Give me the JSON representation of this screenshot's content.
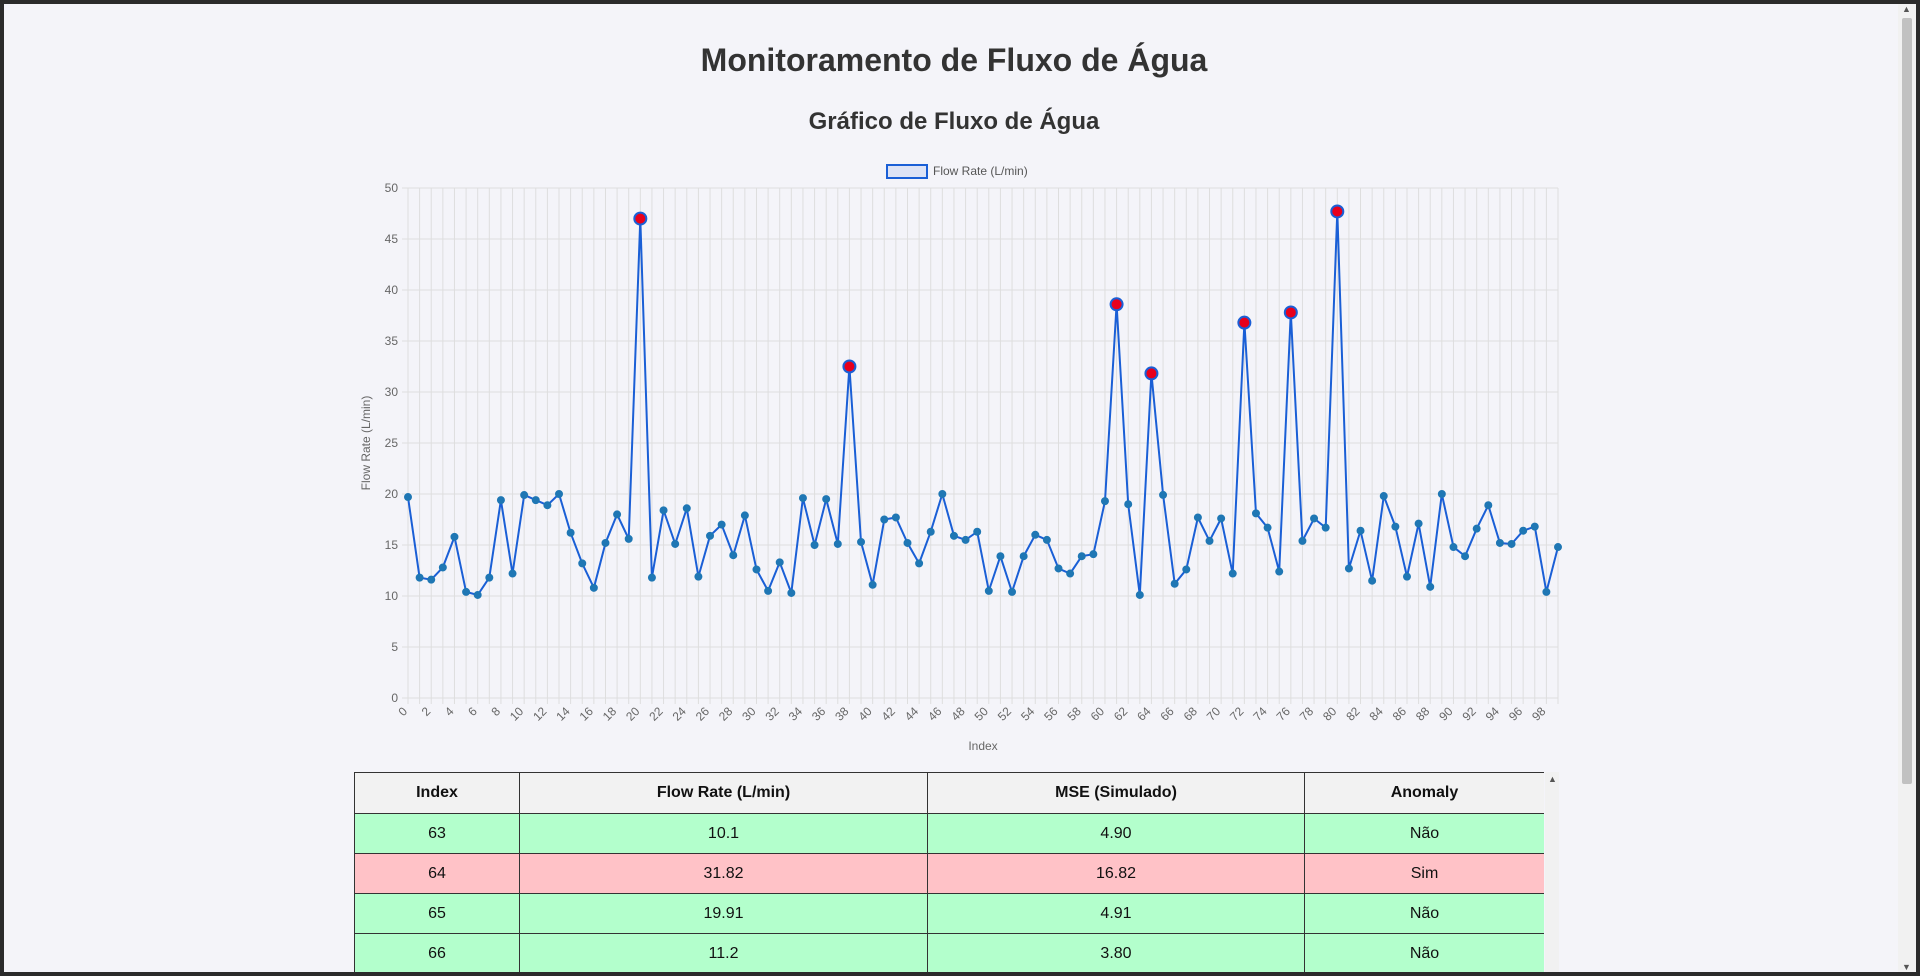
{
  "page": {
    "title": "Monitoramento de Fluxo de Água",
    "chart_title": "Gráfico de Fluxo de Água"
  },
  "chart_data": {
    "type": "line",
    "legend": {
      "label": "Flow Rate (L/min)",
      "position": "top"
    },
    "xlabel": "Index",
    "ylabel": "Flow Rate (L/min)",
    "ylim": [
      0,
      50
    ],
    "y_ticks": [
      0,
      5,
      10,
      15,
      20,
      25,
      30,
      35,
      40,
      45,
      50
    ],
    "x_ticks": [
      0,
      2,
      4,
      6,
      8,
      10,
      12,
      14,
      16,
      18,
      20,
      22,
      24,
      26,
      28,
      30,
      32,
      34,
      36,
      38,
      40,
      42,
      44,
      46,
      48,
      50,
      52,
      54,
      56,
      58,
      60,
      62,
      64,
      66,
      68,
      70,
      72,
      74,
      76,
      78,
      80,
      82,
      84,
      86,
      88,
      90,
      92,
      94,
      96,
      98
    ],
    "grid": true,
    "line_color": "#1a5fd6",
    "point_color": "#1f77b4",
    "anomaly_color": "#e8001c",
    "x": [
      0,
      1,
      2,
      3,
      4,
      5,
      6,
      7,
      8,
      9,
      10,
      11,
      12,
      13,
      14,
      15,
      16,
      17,
      18,
      19,
      20,
      21,
      22,
      23,
      24,
      25,
      26,
      27,
      28,
      29,
      30,
      31,
      32,
      33,
      34,
      35,
      36,
      37,
      38,
      39,
      40,
      41,
      42,
      43,
      44,
      45,
      46,
      47,
      48,
      49,
      50,
      51,
      52,
      53,
      54,
      55,
      56,
      57,
      58,
      59,
      60,
      61,
      62,
      63,
      64,
      65,
      66,
      67,
      68,
      69,
      70,
      71,
      72,
      73,
      74,
      75,
      76,
      77,
      78,
      79,
      80,
      81,
      82,
      83,
      84,
      85,
      86,
      87,
      88,
      89,
      90,
      91,
      92,
      93,
      94,
      95,
      96,
      97,
      98,
      99
    ],
    "values": [
      19.7,
      11.8,
      11.6,
      12.8,
      15.8,
      10.4,
      10.1,
      11.8,
      19.4,
      12.2,
      19.9,
      19.4,
      18.9,
      20.0,
      16.2,
      13.2,
      10.8,
      15.2,
      18.0,
      15.6,
      47.0,
      11.8,
      18.4,
      15.1,
      18.6,
      11.9,
      15.9,
      17.0,
      14.0,
      17.9,
      12.6,
      10.5,
      13.3,
      10.3,
      19.6,
      15.0,
      19.5,
      15.1,
      32.5,
      15.3,
      11.1,
      17.5,
      17.7,
      15.2,
      13.2,
      16.3,
      20.0,
      15.9,
      15.5,
      16.3,
      10.5,
      13.9,
      10.4,
      13.9,
      16.0,
      15.5,
      12.7,
      12.2,
      13.9,
      14.1,
      19.3,
      38.6,
      19.0,
      10.1,
      31.82,
      19.91,
      11.2,
      12.6,
      17.7,
      15.4,
      17.6,
      12.2,
      36.8,
      18.1,
      16.7,
      12.4,
      37.8,
      15.4,
      17.6,
      16.7,
      47.7,
      12.7,
      16.4,
      11.5,
      19.8,
      16.8,
      11.9,
      17.1,
      10.9,
      20.0,
      14.8,
      13.9,
      16.6,
      18.9,
      15.2,
      15.1,
      16.4,
      16.8,
      10.4,
      14.8
    ],
    "anomalies": [
      20,
      38,
      61,
      64,
      72,
      76,
      80
    ]
  },
  "table": {
    "headers": [
      "Index",
      "Flow Rate (L/min)",
      "MSE (Simulado)",
      "Anomaly"
    ],
    "rows": [
      {
        "index": "63",
        "flow": "10.1",
        "mse": "4.90",
        "anomaly": "Não",
        "is_anomaly": false
      },
      {
        "index": "64",
        "flow": "31.82",
        "mse": "16.82",
        "anomaly": "Sim",
        "is_anomaly": true
      },
      {
        "index": "65",
        "flow": "19.91",
        "mse": "4.91",
        "anomaly": "Não",
        "is_anomaly": false
      },
      {
        "index": "66",
        "flow": "11.2",
        "mse": "3.80",
        "anomaly": "Não",
        "is_anomaly": false
      },
      {
        "index": "",
        "flow": "",
        "mse": "",
        "anomaly": "",
        "is_anomaly": false
      }
    ]
  },
  "icons": {
    "scroll_up": "arrow-up-icon",
    "scroll_down": "arrow-down-icon"
  }
}
